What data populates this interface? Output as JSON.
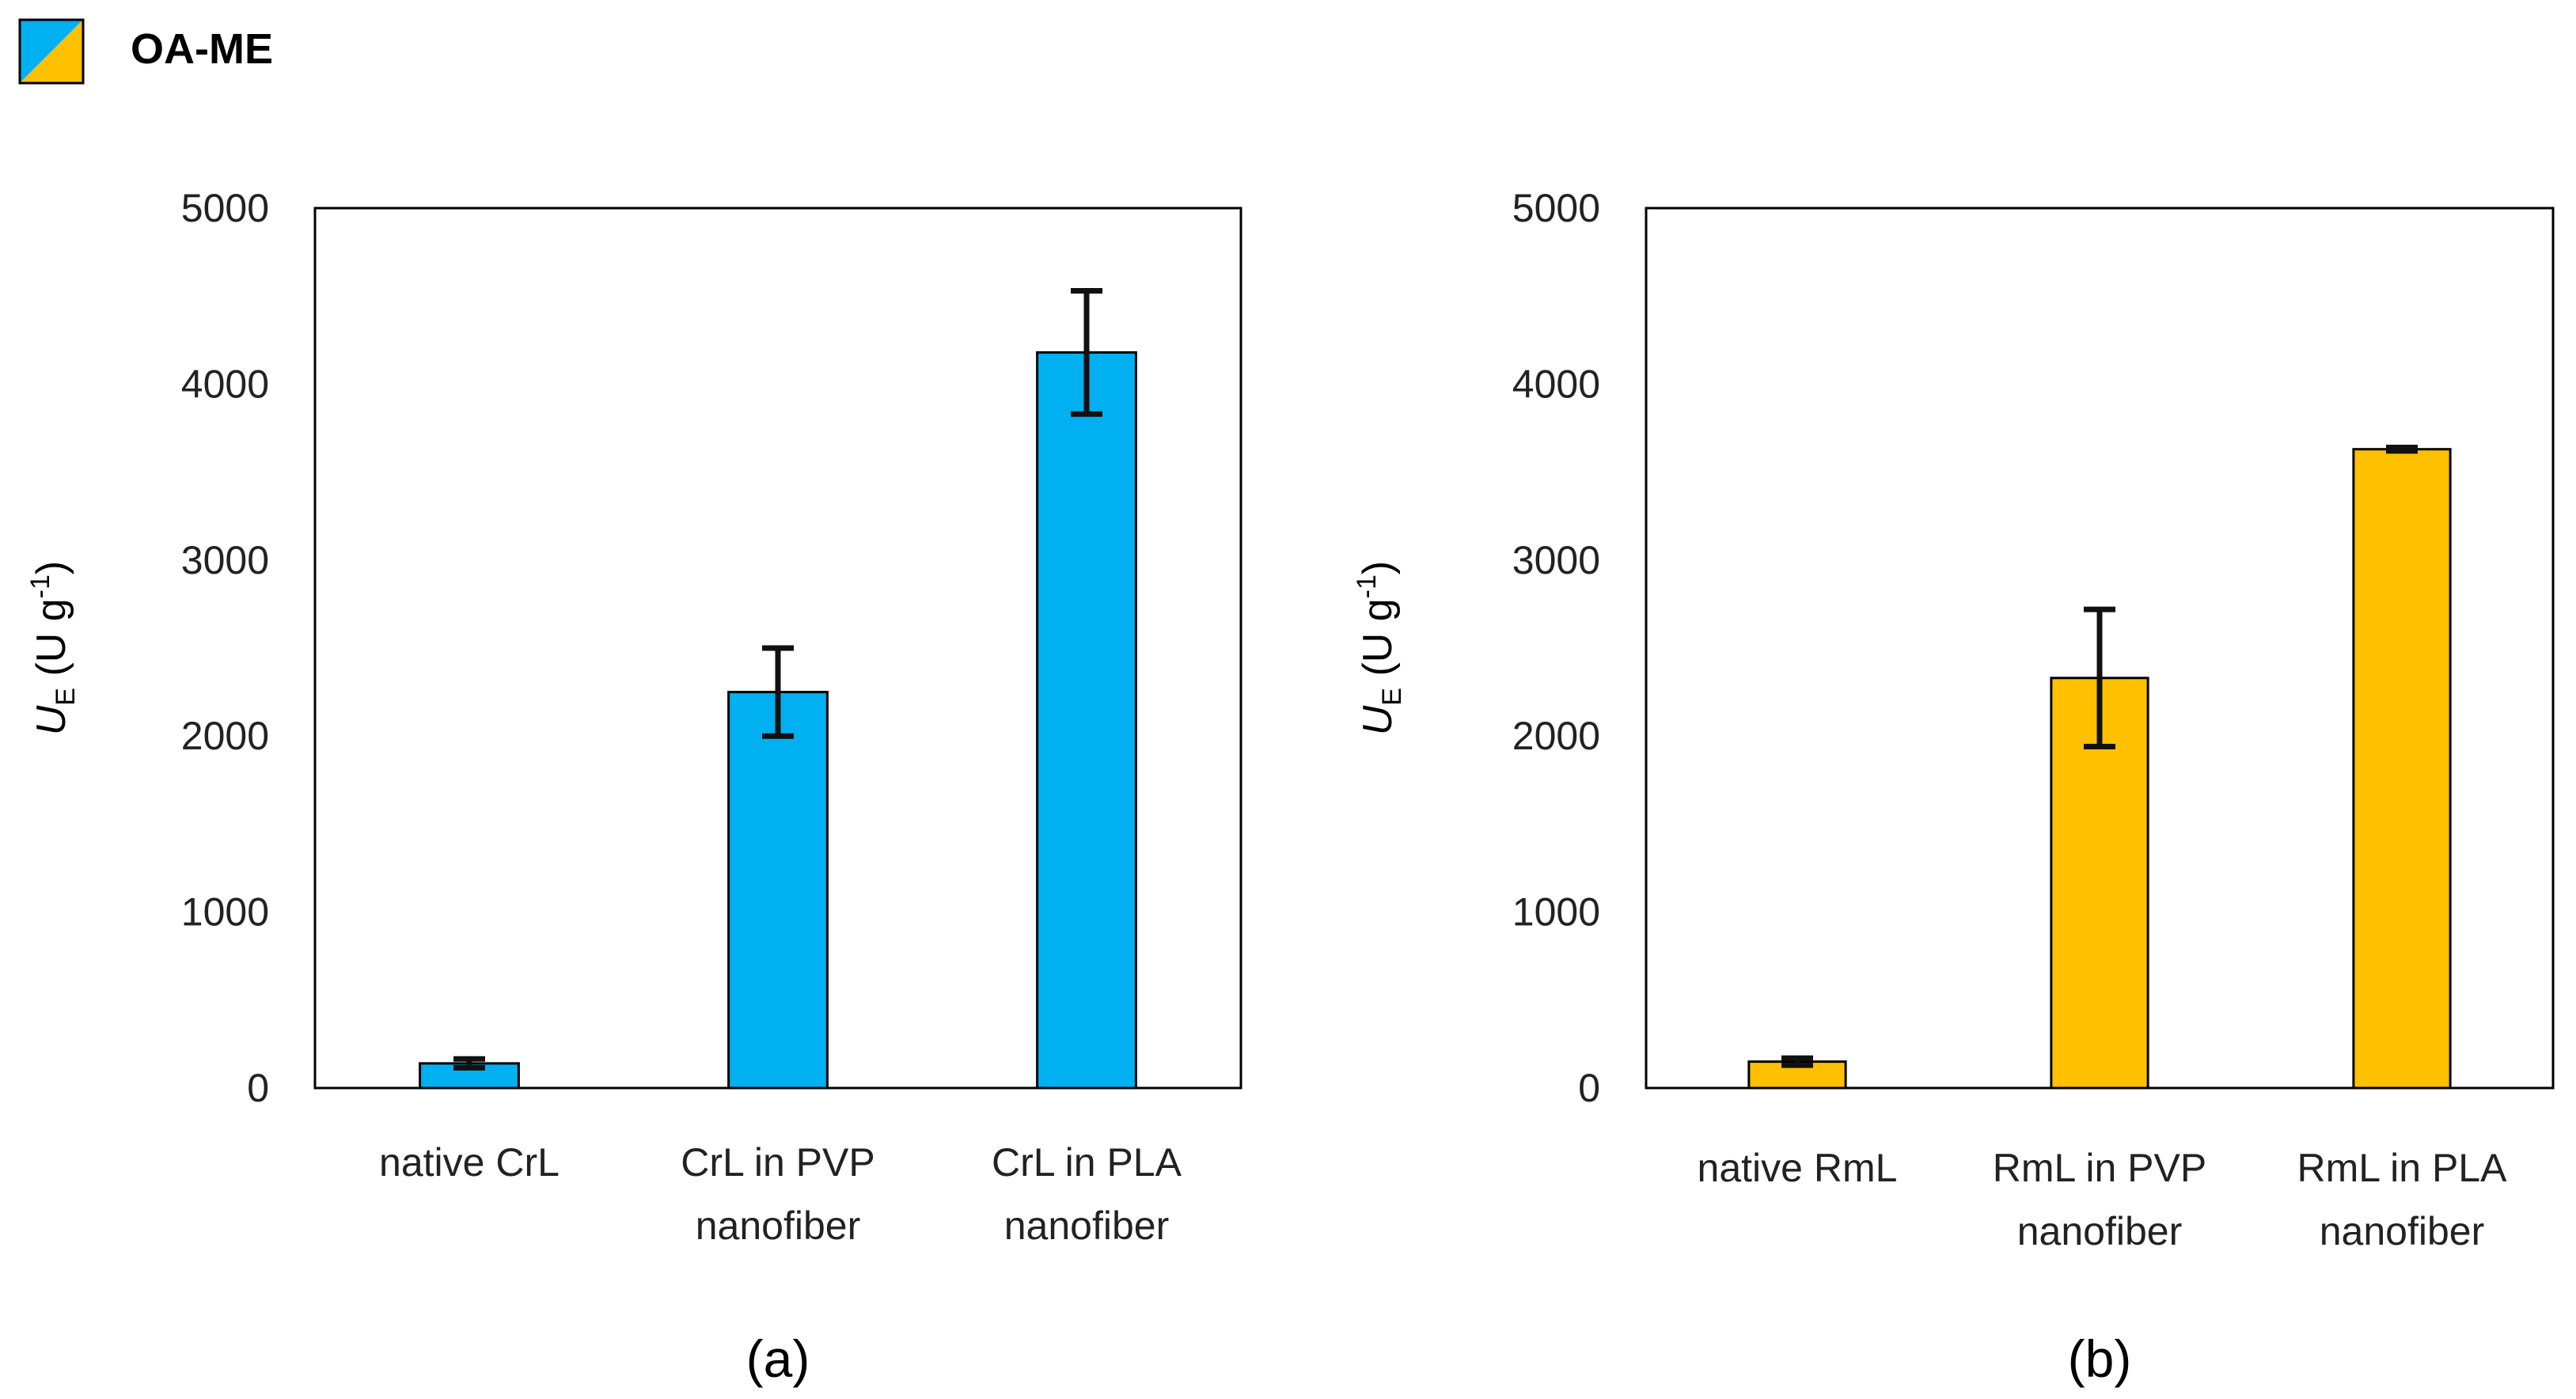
{
  "legend": {
    "label": "OA-ME",
    "colors": [
      "#00b0f0",
      "#ffc000"
    ]
  },
  "chart_data": [
    {
      "type": "bar",
      "panel_label": "(a)",
      "categories": [
        "native CrL",
        "CrL in PVP nanofiber",
        "CrL in PLA nanofiber"
      ],
      "category_lines": [
        [
          "native CrL"
        ],
        [
          "CrL in PVP",
          "nanofiber"
        ],
        [
          "CrL in PLA",
          "nanofiber"
        ]
      ],
      "values": [
        140,
        2250,
        4180
      ],
      "errors": [
        25,
        250,
        350
      ],
      "color": "#00b0f0",
      "ylabel": {
        "symbol": "U",
        "subscript": "E",
        "unit_prefix": " (U g",
        "unit_exponent": "-1",
        "unit_suffix": ")"
      },
      "ylim": [
        0,
        5000
      ],
      "yticks": [
        0,
        1000,
        2000,
        3000,
        4000,
        5000
      ],
      "grid": false
    },
    {
      "type": "bar",
      "panel_label": "(b)",
      "categories": [
        "native RmL",
        "RmL in PVP nanofiber",
        "RmL in PLA nanofiber"
      ],
      "category_lines": [
        [
          "native RmL"
        ],
        [
          "RmL in PVP",
          "nanofiber"
        ],
        [
          "RmL in PLA",
          "nanofiber"
        ]
      ],
      "values": [
        150,
        2330,
        3630
      ],
      "errors": [
        20,
        390,
        10
      ],
      "color": "#ffc000",
      "ylabel": {
        "symbol": "U",
        "subscript": "E",
        "unit_prefix": " (U g",
        "unit_exponent": "-1",
        "unit_suffix": ")"
      },
      "ylim": [
        0,
        5000
      ],
      "yticks": [
        0,
        1000,
        2000,
        3000,
        4000,
        5000
      ],
      "grid": false
    }
  ]
}
